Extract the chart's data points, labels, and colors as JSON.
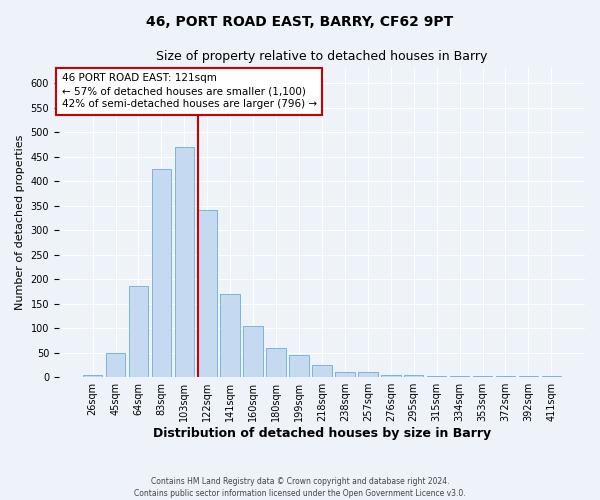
{
  "title1": "46, PORT ROAD EAST, BARRY, CF62 9PT",
  "title2": "Size of property relative to detached houses in Barry",
  "xlabel": "Distribution of detached houses by size in Barry",
  "ylabel": "Number of detached properties",
  "categories": [
    "26sqm",
    "45sqm",
    "64sqm",
    "83sqm",
    "103sqm",
    "122sqm",
    "141sqm",
    "160sqm",
    "180sqm",
    "199sqm",
    "218sqm",
    "238sqm",
    "257sqm",
    "276sqm",
    "295sqm",
    "315sqm",
    "334sqm",
    "353sqm",
    "372sqm",
    "392sqm",
    "411sqm"
  ],
  "values": [
    5,
    50,
    185,
    425,
    470,
    340,
    170,
    105,
    60,
    45,
    25,
    10,
    10,
    5,
    4,
    3,
    2,
    2,
    2,
    2,
    2
  ],
  "bar_color": "#c5d9f0",
  "bar_edge_color": "#6baed6",
  "property_index": 5,
  "red_line_color": "#cc0000",
  "annotation_line1": "46 PORT ROAD EAST: 121sqm",
  "annotation_line2": "← 57% of detached houses are smaller (1,100)",
  "annotation_line3": "42% of semi-detached houses are larger (796) →",
  "annotation_box_color": "#ffffff",
  "annotation_box_edge": "#cc0000",
  "footer1": "Contains HM Land Registry data © Crown copyright and database right 2024.",
  "footer2": "Contains public sector information licensed under the Open Government Licence v3.0.",
  "bg_color": "#eef2f9",
  "ylim_max": 630,
  "grid_color": "#ffffff",
  "title1_fontsize": 10,
  "title2_fontsize": 9,
  "ylabel_fontsize": 8,
  "xlabel_fontsize": 9,
  "tick_fontsize": 7,
  "annot_fontsize": 7.5
}
